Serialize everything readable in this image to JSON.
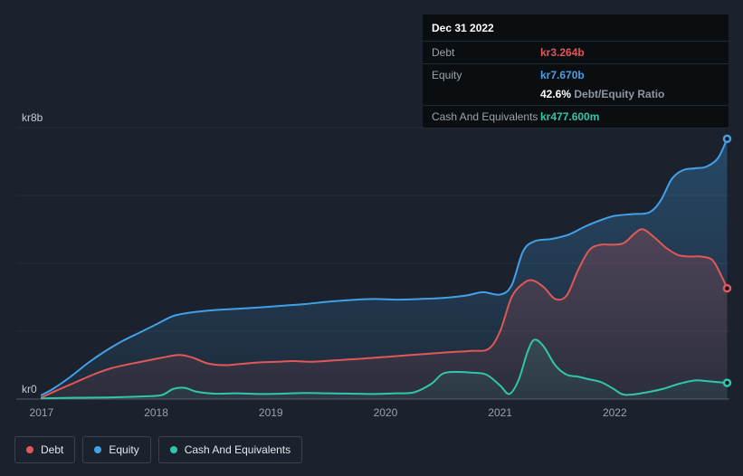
{
  "colors": {
    "background": "#1b222d",
    "debt": "#e25757",
    "equity": "#42a0e8",
    "cash": "#2fc6ac"
  },
  "tooltip": {
    "title": "Dec 31 2022",
    "debt_label": "Debt",
    "debt_value": "kr3.264b",
    "equity_label": "Equity",
    "equity_value": "kr7.670b",
    "ratio_value": "42.6%",
    "ratio_label": "Debt/Equity Ratio",
    "cash_label": "Cash And Equivalents",
    "cash_value": "kr477.600m"
  },
  "legend": {
    "items": [
      {
        "label": "Debt",
        "color": "#e25757"
      },
      {
        "label": "Equity",
        "color": "#42a0e8"
      },
      {
        "label": "Cash And Equivalents",
        "color": "#2fc6ac"
      }
    ]
  },
  "chart_data": {
    "type": "area",
    "xlim": [
      2016.78,
      2023.0
    ],
    "ylim": [
      0,
      8
    ],
    "y_grid_step": 2,
    "x_ticks": [
      2017,
      2018,
      2019,
      2020,
      2021,
      2022
    ],
    "y_axis": {
      "top_label": "kr8b",
      "bottom_label": "kr0"
    },
    "unit": "kr billions",
    "legend_position": "bottom-left",
    "grid": true,
    "series": [
      {
        "name": "Equity",
        "color": "#42a0e8",
        "points": [
          [
            2017.0,
            0.12
          ],
          [
            2017.1,
            0.3
          ],
          [
            2017.25,
            0.65
          ],
          [
            2017.4,
            1.05
          ],
          [
            2017.55,
            1.4
          ],
          [
            2017.7,
            1.7
          ],
          [
            2017.85,
            1.95
          ],
          [
            2018.0,
            2.2
          ],
          [
            2018.15,
            2.45
          ],
          [
            2018.3,
            2.55
          ],
          [
            2018.5,
            2.62
          ],
          [
            2018.7,
            2.66
          ],
          [
            2018.9,
            2.7
          ],
          [
            2019.1,
            2.75
          ],
          [
            2019.3,
            2.8
          ],
          [
            2019.5,
            2.87
          ],
          [
            2019.7,
            2.92
          ],
          [
            2019.9,
            2.95
          ],
          [
            2020.1,
            2.93
          ],
          [
            2020.3,
            2.95
          ],
          [
            2020.5,
            2.98
          ],
          [
            2020.7,
            3.05
          ],
          [
            2020.85,
            3.15
          ],
          [
            2021.0,
            3.08
          ],
          [
            2021.1,
            3.35
          ],
          [
            2021.2,
            4.35
          ],
          [
            2021.3,
            4.65
          ],
          [
            2021.45,
            4.72
          ],
          [
            2021.6,
            4.85
          ],
          [
            2021.75,
            5.1
          ],
          [
            2021.9,
            5.3
          ],
          [
            2022.0,
            5.4
          ],
          [
            2022.15,
            5.45
          ],
          [
            2022.3,
            5.5
          ],
          [
            2022.4,
            5.85
          ],
          [
            2022.5,
            6.5
          ],
          [
            2022.6,
            6.75
          ],
          [
            2022.7,
            6.8
          ],
          [
            2022.8,
            6.85
          ],
          [
            2022.9,
            7.1
          ],
          [
            2022.98,
            7.67
          ]
        ]
      },
      {
        "name": "Debt",
        "color": "#e25757",
        "points": [
          [
            2017.0,
            0.05
          ],
          [
            2017.15,
            0.28
          ],
          [
            2017.3,
            0.5
          ],
          [
            2017.45,
            0.72
          ],
          [
            2017.6,
            0.9
          ],
          [
            2017.75,
            1.02
          ],
          [
            2017.9,
            1.12
          ],
          [
            2018.05,
            1.22
          ],
          [
            2018.2,
            1.3
          ],
          [
            2018.32,
            1.22
          ],
          [
            2018.45,
            1.05
          ],
          [
            2018.6,
            1.0
          ],
          [
            2018.75,
            1.04
          ],
          [
            2018.9,
            1.08
          ],
          [
            2019.05,
            1.1
          ],
          [
            2019.2,
            1.12
          ],
          [
            2019.35,
            1.1
          ],
          [
            2019.55,
            1.14
          ],
          [
            2019.75,
            1.18
          ],
          [
            2019.95,
            1.23
          ],
          [
            2020.15,
            1.28
          ],
          [
            2020.35,
            1.33
          ],
          [
            2020.55,
            1.38
          ],
          [
            2020.75,
            1.42
          ],
          [
            2020.9,
            1.48
          ],
          [
            2021.0,
            2.0
          ],
          [
            2021.1,
            3.0
          ],
          [
            2021.2,
            3.4
          ],
          [
            2021.28,
            3.5
          ],
          [
            2021.38,
            3.3
          ],
          [
            2021.48,
            2.95
          ],
          [
            2021.58,
            3.05
          ],
          [
            2021.68,
            3.8
          ],
          [
            2021.78,
            4.4
          ],
          [
            2021.88,
            4.55
          ],
          [
            2021.98,
            4.55
          ],
          [
            2022.08,
            4.6
          ],
          [
            2022.18,
            4.9
          ],
          [
            2022.25,
            5.0
          ],
          [
            2022.35,
            4.75
          ],
          [
            2022.45,
            4.45
          ],
          [
            2022.55,
            4.25
          ],
          [
            2022.65,
            4.2
          ],
          [
            2022.75,
            4.2
          ],
          [
            2022.85,
            4.1
          ],
          [
            2022.92,
            3.7
          ],
          [
            2022.98,
            3.264
          ]
        ]
      },
      {
        "name": "Cash And Equivalents",
        "color": "#2fc6ac",
        "points": [
          [
            2017.0,
            0.02
          ],
          [
            2017.3,
            0.04
          ],
          [
            2017.6,
            0.05
          ],
          [
            2017.9,
            0.08
          ],
          [
            2018.05,
            0.12
          ],
          [
            2018.15,
            0.3
          ],
          [
            2018.25,
            0.33
          ],
          [
            2018.35,
            0.22
          ],
          [
            2018.5,
            0.16
          ],
          [
            2018.7,
            0.17
          ],
          [
            2018.9,
            0.15
          ],
          [
            2019.1,
            0.16
          ],
          [
            2019.3,
            0.18
          ],
          [
            2019.5,
            0.17
          ],
          [
            2019.7,
            0.16
          ],
          [
            2019.9,
            0.15
          ],
          [
            2020.1,
            0.17
          ],
          [
            2020.25,
            0.2
          ],
          [
            2020.4,
            0.45
          ],
          [
            2020.5,
            0.75
          ],
          [
            2020.62,
            0.8
          ],
          [
            2020.75,
            0.78
          ],
          [
            2020.88,
            0.72
          ],
          [
            2021.0,
            0.4
          ],
          [
            2021.08,
            0.15
          ],
          [
            2021.16,
            0.55
          ],
          [
            2021.24,
            1.4
          ],
          [
            2021.3,
            1.75
          ],
          [
            2021.38,
            1.55
          ],
          [
            2021.48,
            1.0
          ],
          [
            2021.58,
            0.72
          ],
          [
            2021.68,
            0.66
          ],
          [
            2021.78,
            0.58
          ],
          [
            2021.88,
            0.5
          ],
          [
            2021.98,
            0.32
          ],
          [
            2022.06,
            0.15
          ],
          [
            2022.14,
            0.13
          ],
          [
            2022.28,
            0.2
          ],
          [
            2022.42,
            0.3
          ],
          [
            2022.56,
            0.45
          ],
          [
            2022.7,
            0.55
          ],
          [
            2022.8,
            0.53
          ],
          [
            2022.9,
            0.5
          ],
          [
            2022.98,
            0.478
          ]
        ]
      }
    ]
  }
}
